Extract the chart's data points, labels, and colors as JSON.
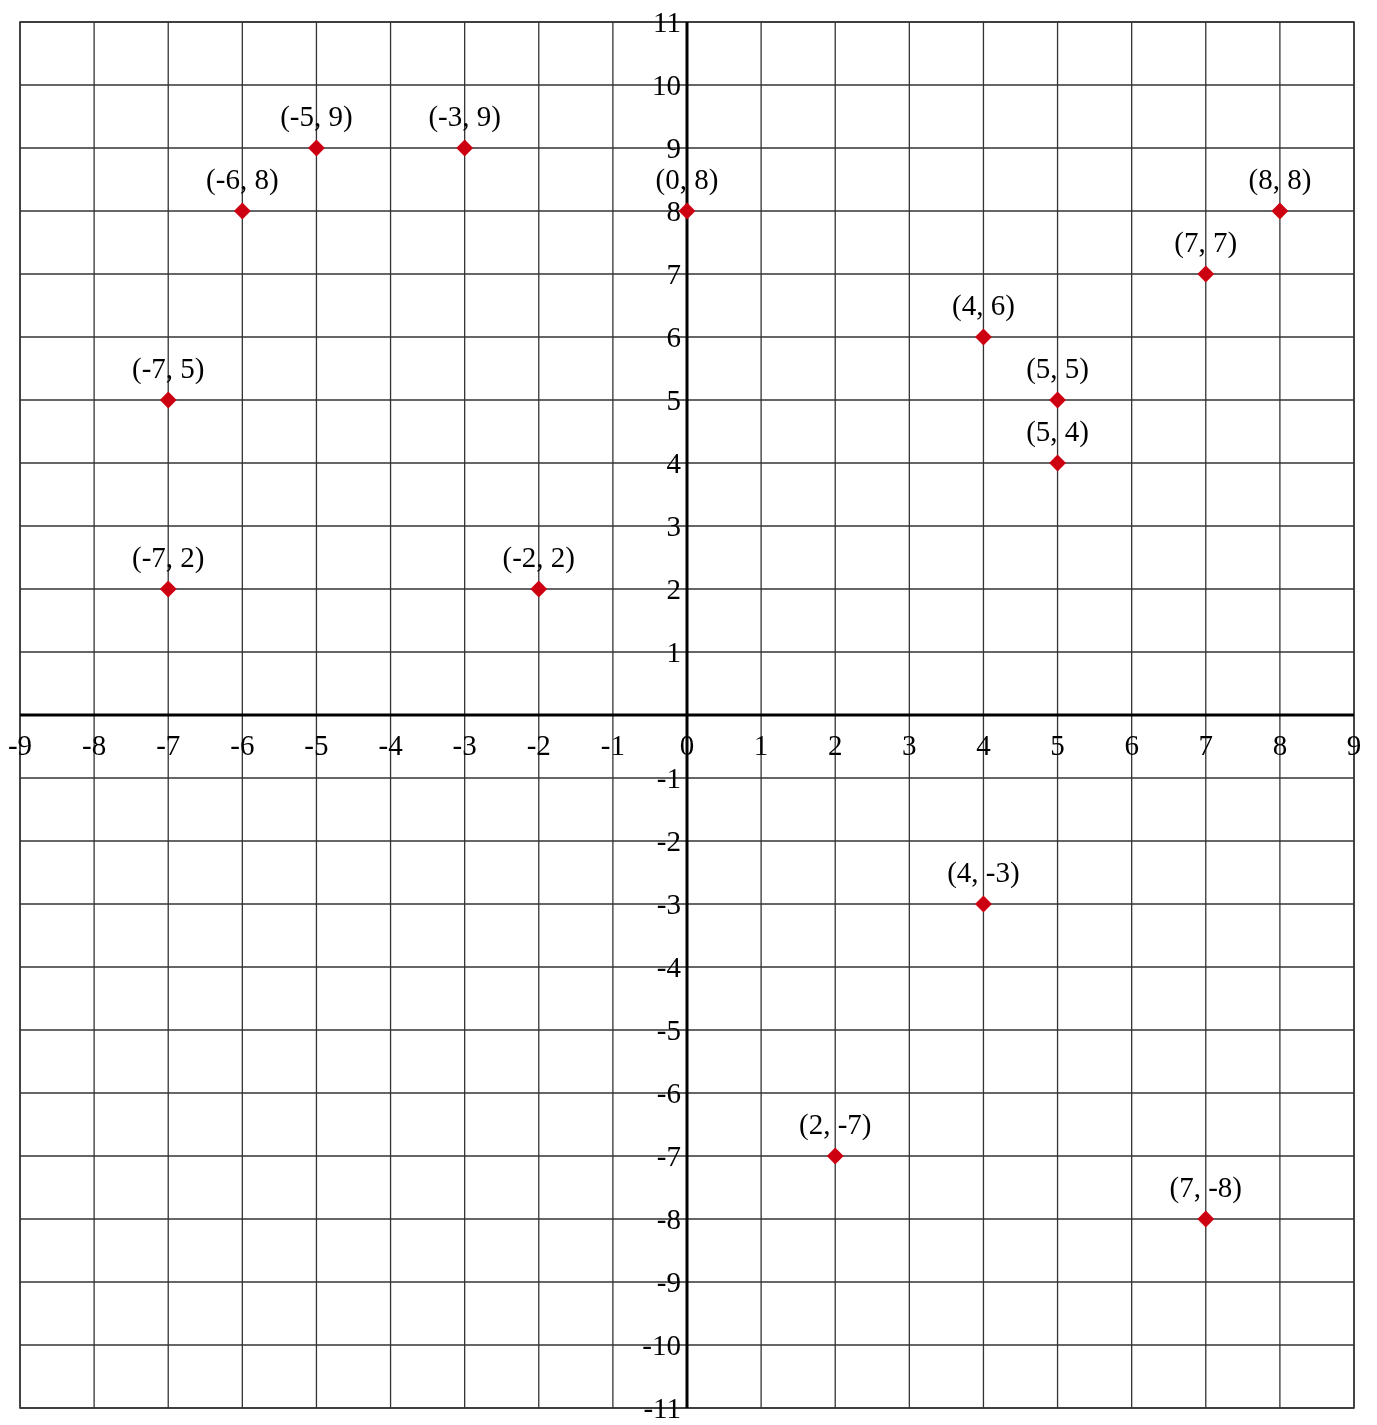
{
  "chart_data": {
    "type": "scatter",
    "x": [
      -7,
      -7,
      -6,
      -5,
      -3,
      -2,
      0,
      2,
      4,
      4,
      5,
      5,
      7,
      7,
      8
    ],
    "values": [
      2,
      5,
      8,
      9,
      9,
      2,
      8,
      -7,
      -3,
      6,
      4,
      5,
      -8,
      7,
      8
    ],
    "value_labels": [
      "(-7, 2)",
      "(-7, 5)",
      "(-6, 8)",
      "(-5, 9)",
      "(-3, 9)",
      "(-2, 2)",
      "(0, 8)",
      "(2, -7)",
      "(4, -3)",
      "(4, 6)",
      "(5, 4)",
      "(5, 5)",
      "(7, -8)",
      "(7, 7)",
      "(8, 8)"
    ],
    "color": "#cc0011",
    "marker": "diamond",
    "grid": true,
    "xlim": [
      -9,
      9
    ],
    "xticks": [
      -9,
      -8,
      -7,
      -6,
      -5,
      -4,
      -3,
      -2,
      -1,
      0,
      1,
      2,
      3,
      4,
      5,
      6,
      7,
      8,
      9
    ],
    "ylim": [
      -11,
      11
    ],
    "yticks": [
      -11,
      -10,
      -9,
      -8,
      -7,
      -6,
      -5,
      -4,
      -3,
      -2,
      -1,
      {
        "value": 0,
        "label": null
      },
      1,
      2,
      3,
      4,
      5,
      6,
      7,
      8,
      9,
      10,
      11
    ]
  }
}
